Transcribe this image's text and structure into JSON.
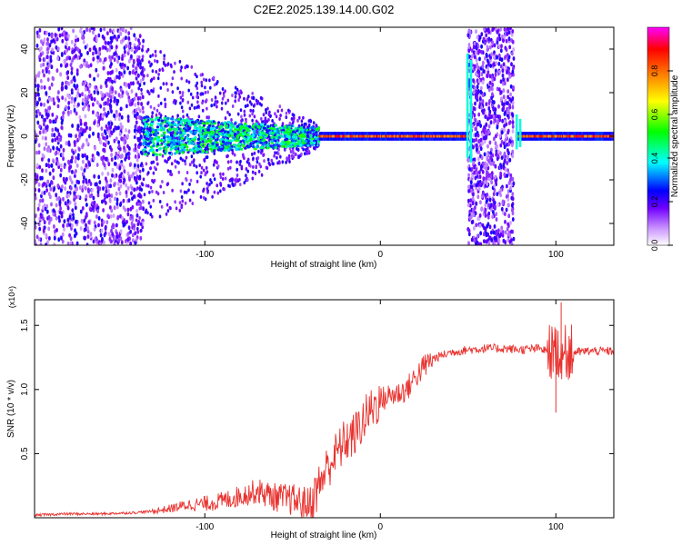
{
  "title": "C2E2.2025.139.14.00.G02",
  "chart_data": [
    {
      "type": "heatmap",
      "xlabel": "Height of straight line (km)",
      "ylabel": "Frequency (Hz)",
      "xlim": [
        -197,
        133
      ],
      "ylim": [
        -50,
        50
      ],
      "x_ticks": [
        -100,
        0,
        100
      ],
      "y_ticks": [
        -40,
        -20,
        0,
        20,
        40
      ],
      "colorbar": {
        "label": "Normalized spectral amplitude",
        "range": [
          0,
          1
        ],
        "ticks": [
          0.0,
          0.2,
          0.4,
          0.6,
          0.8
        ],
        "colors": [
          "#ffffff",
          "#c890ff",
          "#7000ff",
          "#0000ff",
          "#00ffff",
          "#00ff00",
          "#ffff00",
          "#ff8000",
          "#ff0000",
          "#ff00ff"
        ]
      },
      "features": [
        {
          "name": "broadband noise",
          "x_range": [
            -197,
            -135
          ],
          "y_range": [
            -50,
            50
          ],
          "amplitude": 0.2
        },
        {
          "name": "central line",
          "x_range": [
            -135,
            133
          ],
          "center_hz": 0,
          "amplitude": 0.9
        },
        {
          "name": "interference band",
          "x_range": [
            50,
            76
          ],
          "y_range": [
            -50,
            50
          ],
          "amplitude": 0.2
        }
      ]
    },
    {
      "type": "line",
      "xlabel": "Height of straight line (km)",
      "ylabel": "SNR (10 * v/v)",
      "y_multiplier": "(x10⁴)",
      "xlim": [
        -197,
        133
      ],
      "ylim": [
        0,
        1.7
      ],
      "x_ticks": [
        -100,
        0,
        100
      ],
      "y_ticks": [
        0.5,
        1.0,
        1.5
      ],
      "series": [
        {
          "color": "#e8322e",
          "x": [
            -197,
            -180,
            -160,
            -140,
            -130,
            -120,
            -110,
            -100,
            -90,
            -80,
            -70,
            -60,
            -50,
            -40,
            -35,
            -30,
            -25,
            -20,
            -15,
            -10,
            -5,
            0,
            5,
            10,
            15,
            20,
            25,
            30,
            40,
            50,
            60,
            70,
            80,
            90,
            95,
            100,
            105,
            110,
            120,
            133
          ],
          "y": [
            0.02,
            0.03,
            0.03,
            0.04,
            0.05,
            0.07,
            0.1,
            0.11,
            0.13,
            0.17,
            0.21,
            0.16,
            0.14,
            0.1,
            0.25,
            0.4,
            0.5,
            0.6,
            0.64,
            0.75,
            0.85,
            0.92,
            0.95,
            0.97,
            1.0,
            1.1,
            1.18,
            1.24,
            1.29,
            1.31,
            1.32,
            1.32,
            1.31,
            1.32,
            1.3,
            1.3,
            1.29,
            1.29,
            1.3,
            1.3
          ]
        }
      ],
      "spikes": [
        {
          "x": 100,
          "y": 0.82
        },
        {
          "x": 103,
          "y": 1.68
        }
      ]
    }
  ]
}
